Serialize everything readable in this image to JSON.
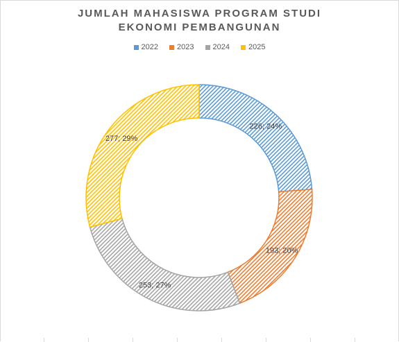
{
  "chart_data": {
    "type": "pie",
    "title_lines": [
      "JUMLAH MAHASISWA PROGRAM STUDI",
      "EKONOMI PEMBANGUNAN"
    ],
    "categories": [
      "2022",
      "2023",
      "2024",
      "2025"
    ],
    "values": [
      226,
      193,
      253,
      277
    ],
    "percents": [
      24,
      20,
      27,
      29
    ],
    "data_labels": [
      "226; 24%",
      "193; 20%",
      "253; 27%",
      "277; 29%"
    ],
    "colors": [
      "#5b9bd5",
      "#ed7d31",
      "#a5a5a5",
      "#ffc000"
    ],
    "legend_position": "top",
    "style": "doughnut with diagonal hatch fill"
  }
}
